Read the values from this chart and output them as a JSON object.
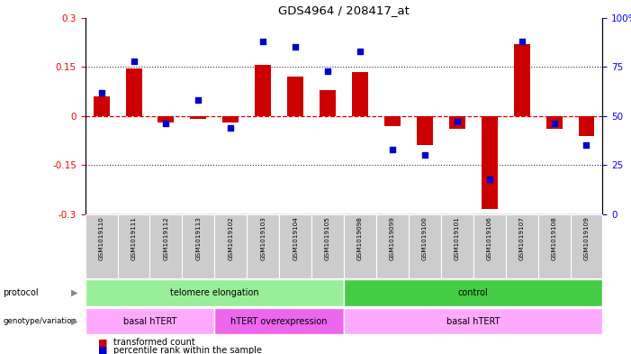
{
  "title": "GDS4964 / 208417_at",
  "samples": [
    "GSM1019110",
    "GSM1019111",
    "GSM1019112",
    "GSM1019113",
    "GSM1019102",
    "GSM1019103",
    "GSM1019104",
    "GSM1019105",
    "GSM1019098",
    "GSM1019099",
    "GSM1019100",
    "GSM1019101",
    "GSM1019106",
    "GSM1019107",
    "GSM1019108",
    "GSM1019109"
  ],
  "bar_values": [
    0.06,
    0.145,
    -0.02,
    -0.01,
    -0.02,
    0.155,
    0.12,
    0.08,
    0.135,
    -0.03,
    -0.09,
    -0.04,
    -0.285,
    0.22,
    -0.04,
    -0.06
  ],
  "dot_percentiles": [
    62,
    78,
    46,
    58,
    44,
    88,
    85,
    73,
    83,
    33,
    30,
    47,
    18,
    88,
    46,
    35
  ],
  "ylim": [
    -0.3,
    0.3
  ],
  "yticks_left": [
    -0.3,
    -0.15,
    0.0,
    0.15,
    0.3
  ],
  "yticks_right": [
    0,
    25,
    50,
    75,
    100
  ],
  "protocol_groups": [
    {
      "label": "telomere elongation",
      "start": 0,
      "end": 8,
      "color": "#99EE99"
    },
    {
      "label": "control",
      "start": 8,
      "end": 16,
      "color": "#44CC44"
    }
  ],
  "genotype_groups": [
    {
      "label": "basal hTERT",
      "start": 0,
      "end": 4,
      "color": "#FFAAFF"
    },
    {
      "label": "hTERT overexpression",
      "start": 4,
      "end": 8,
      "color": "#EE66EE"
    },
    {
      "label": "basal hTERT",
      "start": 8,
      "end": 16,
      "color": "#FFAAFF"
    }
  ],
  "bar_color": "#CC0000",
  "dot_color": "#0000CC",
  "ref_line_color": "#DD0000",
  "dotted_line_color": "#333333",
  "sample_bg_color": "#CCCCCC",
  "legend_red": "transformed count",
  "legend_blue": "percentile rank within the sample"
}
